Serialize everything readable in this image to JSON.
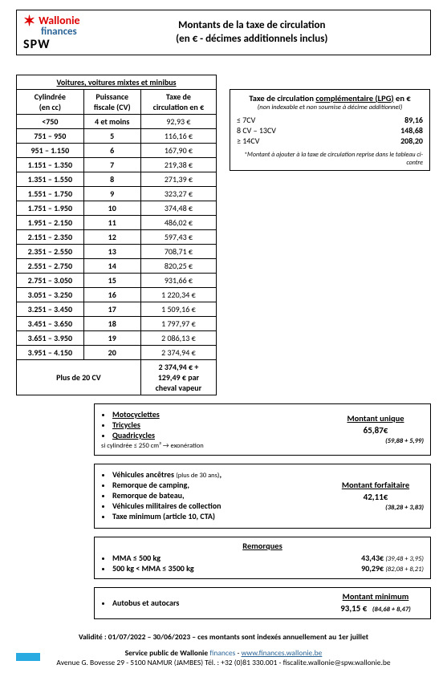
{
  "logo": {
    "wal": "Wallonie",
    "fin": "finances",
    "spw": "SPW",
    "mark": "✶"
  },
  "title_l1": "Montants de la taxe de circulation",
  "title_l2": "(en € - décimes additionnels inclus)",
  "main_table": {
    "caption": "Voitures, voitures mixtes et minibus",
    "h1a": "Cylindrée",
    "h1b": "(en cc)",
    "h2a": "Puissance",
    "h2b": "fiscale (CV)",
    "h3a": "Taxe de",
    "h3b": "circulation en €",
    "rows": [
      {
        "c": "<750",
        "p": "4 et moins",
        "t": "92,93 €"
      },
      {
        "c": "751 – 950",
        "p": "5",
        "t": "116,16 €"
      },
      {
        "c": "951 – 1.150",
        "p": "6",
        "t": "167,90 €"
      },
      {
        "c": "1.151 – 1.350",
        "p": "7",
        "t": "219,38 €"
      },
      {
        "c": "1.351 – 1.550",
        "p": "8",
        "t": "271,39 €"
      },
      {
        "c": "1.551 – 1.750",
        "p": "9",
        "t": "323,27 €"
      },
      {
        "c": "1.751 – 1.950",
        "p": "10",
        "t": "374,48 €"
      },
      {
        "c": "1.951 – 2.150",
        "p": "11",
        "t": "486,02 €"
      },
      {
        "c": "2.151 – 2.350",
        "p": "12",
        "t": "597,43 €"
      },
      {
        "c": "2.351 – 2.550",
        "p": "13",
        "t": "708,71 €"
      },
      {
        "c": "2.551 – 2.750",
        "p": "14",
        "t": "820,25 €"
      },
      {
        "c": "2.751 – 3.050",
        "p": "15",
        "t": "931,66 €"
      },
      {
        "c": "3.051 – 3.250",
        "p": "16",
        "t": "1 220,34 €"
      },
      {
        "c": "3.251 – 3.450",
        "p": "17",
        "t": "1 509,16 €"
      },
      {
        "c": "3.451 – 3.650",
        "p": "18",
        "t": "1 797,97 €"
      },
      {
        "c": "3.651 – 3.950",
        "p": "19",
        "t": "2 086,13 €"
      },
      {
        "c": "3.951 – 4.150",
        "p": "20",
        "t": "2 374,94 €"
      }
    ],
    "last_label": "Plus de 20 CV",
    "last_val_l1": "2 374,94 € +",
    "last_val_l2": "129,49 € par",
    "last_val_l3": "cheval vapeur"
  },
  "lpg": {
    "title_pre": "Taxe de circulation ",
    "title_u": "complémentaire (LPG)",
    "title_post": " en €",
    "sub": "(non indexable et non soumise à décime additionnel)",
    "rows": [
      {
        "l": "≤ 7CV",
        "v": "89,16"
      },
      {
        "l": "8 CV – 13CV",
        "v": "148,68"
      },
      {
        "l": "≥ 14CV",
        "v": "208,20"
      }
    ],
    "note": "*Montant à ajouter à la taxe de circulation reprise dans le tableau ci-contre"
  },
  "moto": {
    "heading": "Montant unique",
    "items": [
      "Motocyclettes",
      "Tricycles",
      "Quadricycles"
    ],
    "amount": "65,87€",
    "note": "si cylindrée ≤ 250 cm³ → exonération",
    "detail": "(59,88 + 5,99)"
  },
  "forfait": {
    "heading": "Montant forfaitaire",
    "items": [
      "Véhicules ancêtres (plus de 30 ans),",
      "Remorque de camping,",
      "Remorque de bateau,",
      "Véhicules militaires de collection",
      "Taxe minimum (article 10, CTA)"
    ],
    "amount": "42,11€",
    "detail": "(38,28 + 3,83)"
  },
  "remorques": {
    "title": "Remorques",
    "rows": [
      {
        "l": "MMA ≤ 500 kg",
        "v": "43,43€",
        "d": "(39,48 + 3,95)"
      },
      {
        "l": "500 kg < MMA ≤ 3500 kg",
        "v": "90,29€",
        "d": "(82,08 + 8,21)"
      }
    ]
  },
  "autobus": {
    "label": "Autobus et autocars",
    "heading": "Montant minimum",
    "amount": "93,15 €",
    "detail": "(84,68 + 8,47)"
  },
  "validity": "Validité : 01/07/2022 – 30/06/2023 – ces montants sont indexés annuellement au 1er juillet",
  "footer": {
    "l1a": "Service public de Wallonie ",
    "l1b": "finances",
    "l1c": " - ",
    "l1d": "www.finances.wallonie.be",
    "l2": "Avenue G. Bovesse 29 - 5100 NAMUR (JAMBES)  Tél. : +32 (0)81 330.001 - fiscalite.wallonie@spw.wallonie.be"
  }
}
